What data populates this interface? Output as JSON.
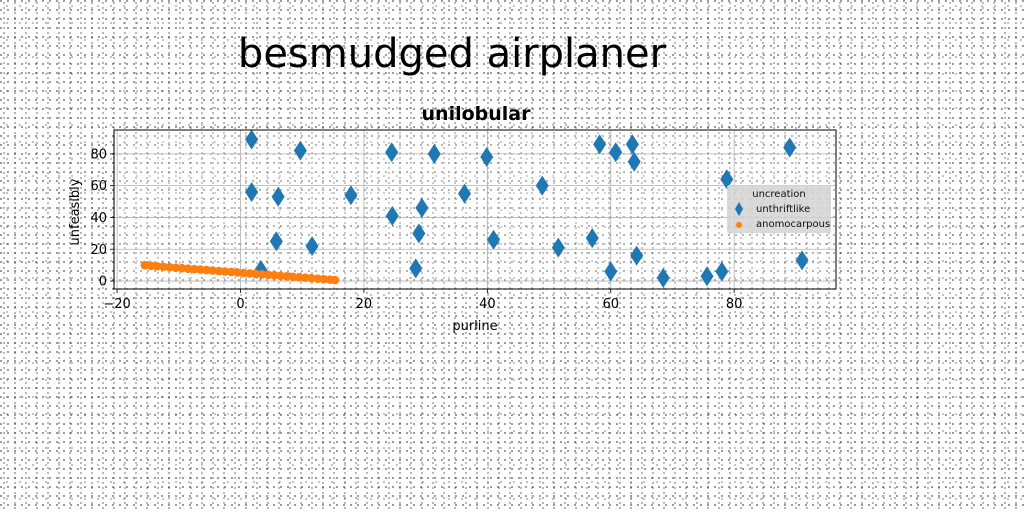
{
  "figure_title": "besmudged airplaner",
  "chart_data": {
    "type": "scatter",
    "title": "unilobular",
    "xlabel": "purline",
    "ylabel": "unfeasibly",
    "xlim": [
      -20.5,
      96.5
    ],
    "ylim": [
      -5,
      95
    ],
    "xticks": [
      "−20",
      "0",
      "20",
      "40",
      "60",
      "80"
    ],
    "yticks": [
      "0",
      "20",
      "40",
      "60",
      "80"
    ],
    "grid": true,
    "legend": {
      "title": "uncreation",
      "placement": "center-right"
    },
    "series": [
      {
        "name": "unthriftlike",
        "marker": "diamond",
        "color": "#1f77b4",
        "points": [
          {
            "x": 1.8,
            "y": 89
          },
          {
            "x": 1.8,
            "y": 56
          },
          {
            "x": 3.3,
            "y": 7
          },
          {
            "x": 5.8,
            "y": 25
          },
          {
            "x": 6.1,
            "y": 53
          },
          {
            "x": 9.7,
            "y": 82
          },
          {
            "x": 11.6,
            "y": 22
          },
          {
            "x": 17.9,
            "y": 54
          },
          {
            "x": 24.5,
            "y": 81
          },
          {
            "x": 24.6,
            "y": 41
          },
          {
            "x": 28.4,
            "y": 8
          },
          {
            "x": 28.9,
            "y": 30
          },
          {
            "x": 29.4,
            "y": 46
          },
          {
            "x": 31.4,
            "y": 80
          },
          {
            "x": 36.3,
            "y": 55
          },
          {
            "x": 39.9,
            "y": 78
          },
          {
            "x": 41.0,
            "y": 26
          },
          {
            "x": 48.9,
            "y": 60
          },
          {
            "x": 51.5,
            "y": 21
          },
          {
            "x": 57.0,
            "y": 27
          },
          {
            "x": 58.2,
            "y": 86
          },
          {
            "x": 60.0,
            "y": 6
          },
          {
            "x": 60.8,
            "y": 81
          },
          {
            "x": 63.5,
            "y": 86
          },
          {
            "x": 63.8,
            "y": 75
          },
          {
            "x": 64.2,
            "y": 16
          },
          {
            "x": 68.5,
            "y": 2
          },
          {
            "x": 75.6,
            "y": 3
          },
          {
            "x": 78.0,
            "y": 6
          },
          {
            "x": 78.8,
            "y": 64
          },
          {
            "x": 89.0,
            "y": 84
          },
          {
            "x": 91.0,
            "y": 13
          }
        ]
      },
      {
        "name": "anomocarpous",
        "marker": "circle",
        "color": "#ff7f0e",
        "points": [
          {
            "x": -15.5,
            "y": 10
          },
          {
            "x": -14.5,
            "y": 9.6
          },
          {
            "x": -13.5,
            "y": 9.3
          },
          {
            "x": -12.5,
            "y": 9.0
          },
          {
            "x": -11.5,
            "y": 8.7
          },
          {
            "x": -10.5,
            "y": 8.4
          },
          {
            "x": -9.5,
            "y": 8.1
          },
          {
            "x": -8.5,
            "y": 7.8
          },
          {
            "x": -7.5,
            "y": 7.5
          },
          {
            "x": -6.5,
            "y": 7.2
          },
          {
            "x": -5.5,
            "y": 6.9
          },
          {
            "x": -4.5,
            "y": 6.6
          },
          {
            "x": -3.5,
            "y": 6.3
          },
          {
            "x": -2.5,
            "y": 6.0
          },
          {
            "x": -1.5,
            "y": 5.7
          },
          {
            "x": -0.5,
            "y": 5.4
          },
          {
            "x": 0.5,
            "y": 5.1
          },
          {
            "x": 1.5,
            "y": 4.8
          },
          {
            "x": 2.5,
            "y": 4.5
          },
          {
            "x": 3.5,
            "y": 4.2
          },
          {
            "x": 4.5,
            "y": 3.9
          },
          {
            "x": 5.5,
            "y": 3.6
          },
          {
            "x": 6.5,
            "y": 3.3
          },
          {
            "x": 7.5,
            "y": 3.0
          },
          {
            "x": 8.5,
            "y": 2.7
          },
          {
            "x": 9.5,
            "y": 2.4
          },
          {
            "x": 10.5,
            "y": 2.1
          },
          {
            "x": 11.5,
            "y": 1.8
          },
          {
            "x": 12.5,
            "y": 1.5
          },
          {
            "x": 13.5,
            "y": 1.2
          },
          {
            "x": 14.5,
            "y": 0.9
          },
          {
            "x": 15.3,
            "y": 0.6
          }
        ]
      }
    ]
  }
}
